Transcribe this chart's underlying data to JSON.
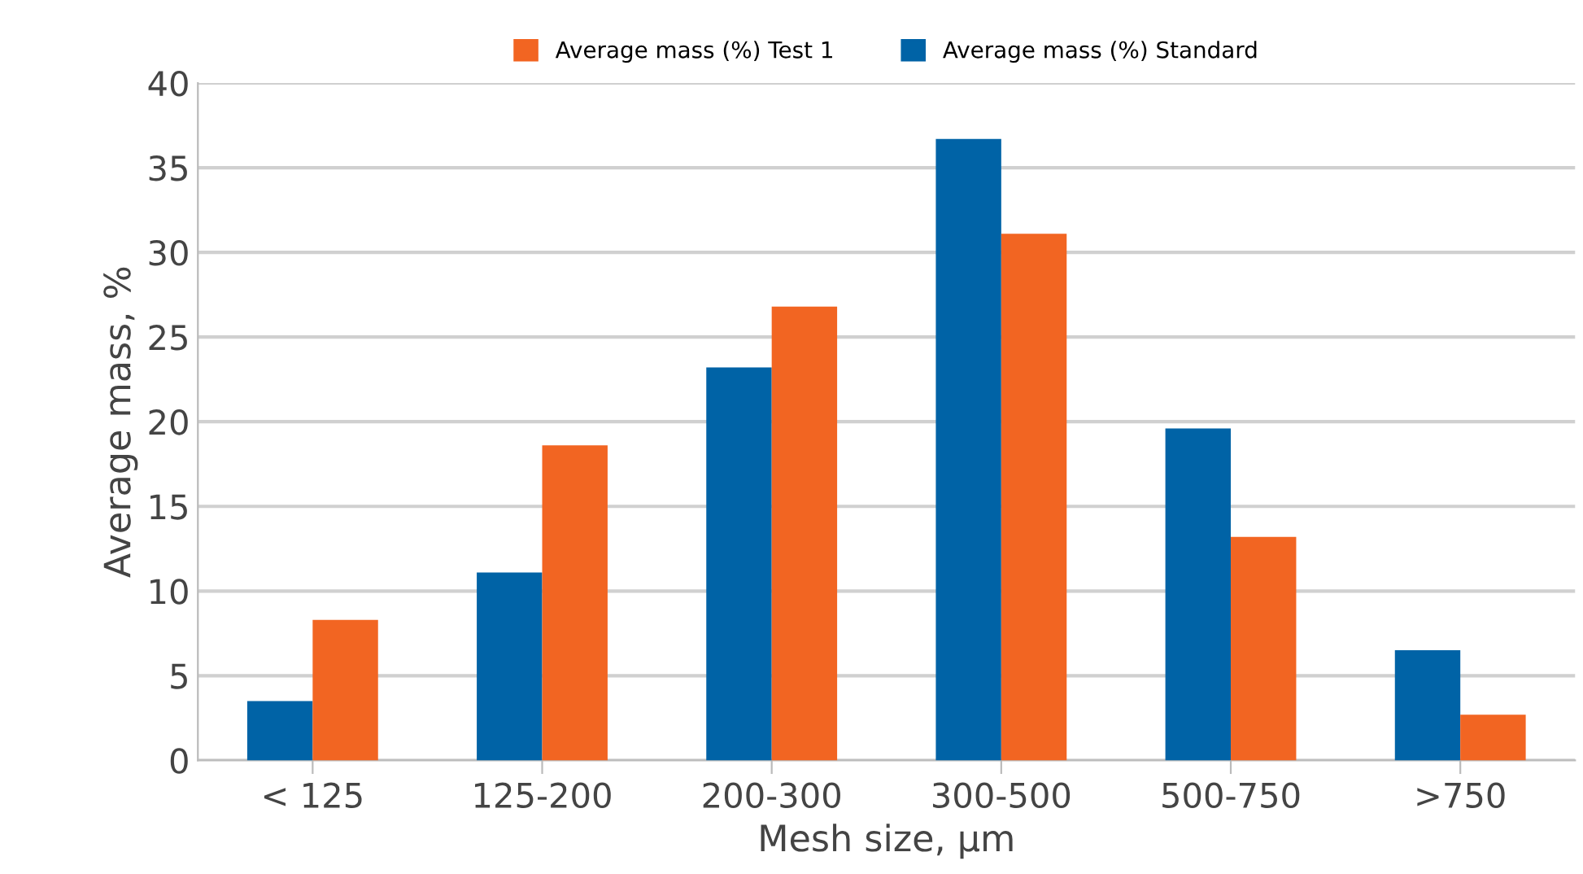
{
  "chart_data": {
    "type": "bar",
    "xlabel": "Mesh size, µm",
    "ylabel": "Average mass, %",
    "categories": [
      "< 125",
      "125-200",
      "200-300",
      "300-500",
      "500-750",
      ">750"
    ],
    "series": [
      {
        "name": "Average mass (%) Standard",
        "color": "#0063a6",
        "values": [
          3.5,
          11.1,
          23.2,
          36.7,
          19.6,
          6.5
        ]
      },
      {
        "name": "Average mass (%) Test 1",
        "color": "#f26522",
        "values": [
          8.3,
          18.6,
          26.8,
          31.1,
          13.2,
          2.7
        ]
      }
    ],
    "ylim": [
      0,
      40
    ],
    "yticks": [
      0,
      5,
      10,
      15,
      20,
      25,
      30,
      35,
      40
    ],
    "grid": "y",
    "legend": "top"
  }
}
